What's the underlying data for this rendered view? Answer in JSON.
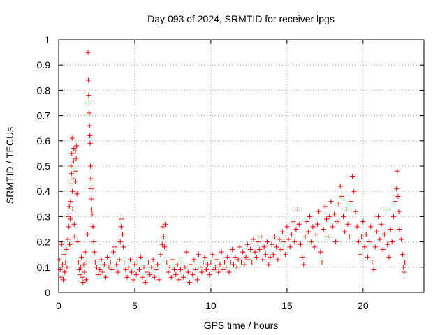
{
  "chart_data": {
    "type": "scatter",
    "title": "Day 093 of 2024, SRMTID for receiver lpgs",
    "xlabel": "GPS time / hours",
    "ylabel": "SRMTID / TECUs",
    "xlim": [
      0,
      24
    ],
    "ylim": [
      0,
      1
    ],
    "xticks": [
      0,
      5,
      10,
      15,
      20
    ],
    "yticks": [
      0,
      0.1,
      0.2,
      0.3,
      0.4,
      0.5,
      0.6,
      0.7,
      0.8,
      0.9,
      1
    ],
    "xtick_labels": [
      "0",
      "5",
      "10",
      "15",
      "20"
    ],
    "ytick_labels": [
      "0",
      "0.1",
      "0.2",
      "0.3",
      "0.4",
      "0.5",
      "0.6",
      "0.7",
      "0.8",
      "0.9",
      "1"
    ],
    "grid": true,
    "marker": "+",
    "series": [
      {
        "name": "lpgs",
        "color": "#ff0000",
        "points": [
          [
            0.05,
            0.13
          ],
          [
            0.1,
            0.09
          ],
          [
            0.15,
            0.06
          ],
          [
            0.2,
            0.19
          ],
          [
            0.25,
            0.11
          ],
          [
            0.3,
            0.05
          ],
          [
            0.35,
            0.15
          ],
          [
            0.4,
            0.08
          ],
          [
            0.45,
            0.12
          ],
          [
            0.5,
            0.17
          ],
          [
            0.55,
            0.1
          ],
          [
            0.6,
            0.21
          ],
          [
            0.62,
            0.3
          ],
          [
            0.66,
            0.26
          ],
          [
            0.7,
            0.34
          ],
          [
            0.72,
            0.19
          ],
          [
            0.75,
            0.29
          ],
          [
            0.78,
            0.36
          ],
          [
            0.8,
            0.43
          ],
          [
            0.82,
            0.5
          ],
          [
            0.84,
            0.47
          ],
          [
            0.86,
            0.55
          ],
          [
            0.88,
            0.61
          ],
          [
            0.9,
            0.4
          ],
          [
            0.92,
            0.33
          ],
          [
            0.95,
            0.45
          ],
          [
            0.98,
            0.52
          ],
          [
            1.0,
            0.57
          ],
          [
            1.02,
            0.27
          ],
          [
            1.05,
            0.22
          ],
          [
            1.08,
            0.48
          ],
          [
            1.1,
            0.56
          ],
          [
            1.12,
            0.44
          ],
          [
            1.15,
            0.53
          ],
          [
            1.18,
            0.58
          ],
          [
            1.2,
            0.39
          ],
          [
            1.25,
            0.2
          ],
          [
            1.3,
            0.12
          ],
          [
            1.35,
            0.09
          ],
          [
            1.4,
            0.07
          ],
          [
            1.45,
            0.1
          ],
          [
            1.5,
            0.14
          ],
          [
            1.55,
            0.06
          ],
          [
            1.6,
            0.04
          ],
          [
            1.65,
            0.11
          ],
          [
            1.7,
            0.08
          ],
          [
            1.75,
            0.16
          ],
          [
            1.8,
            0.05
          ],
          [
            1.85,
            0.12
          ],
          [
            1.9,
            0.23
          ],
          [
            1.93,
            0.95
          ],
          [
            1.95,
            0.84
          ],
          [
            1.97,
            0.78
          ],
          [
            1.99,
            0.75
          ],
          [
            2.01,
            0.71
          ],
          [
            2.03,
            0.66
          ],
          [
            2.05,
            0.62
          ],
          [
            2.07,
            0.59
          ],
          [
            2.09,
            0.5
          ],
          [
            2.11,
            0.45
          ],
          [
            2.13,
            0.41
          ],
          [
            2.15,
            0.37
          ],
          [
            2.17,
            0.33
          ],
          [
            2.2,
            0.31
          ],
          [
            2.25,
            0.26
          ],
          [
            2.3,
            0.2
          ],
          [
            2.35,
            0.16
          ],
          [
            2.4,
            0.12
          ],
          [
            2.5,
            0.1
          ],
          [
            2.6,
            0.07
          ],
          [
            2.7,
            0.09
          ],
          [
            2.8,
            0.13
          ],
          [
            2.9,
            0.08
          ],
          [
            3.0,
            0.11
          ],
          [
            3.1,
            0.06
          ],
          [
            3.2,
            0.14
          ],
          [
            3.3,
            0.1
          ],
          [
            3.4,
            0.12
          ],
          [
            3.5,
            0.09
          ],
          [
            3.6,
            0.16
          ],
          [
            3.7,
            0.18
          ],
          [
            3.8,
            0.11
          ],
          [
            3.9,
            0.08
          ],
          [
            4.0,
            0.13
          ],
          [
            4.05,
            0.2
          ],
          [
            4.1,
            0.26
          ],
          [
            4.15,
            0.29
          ],
          [
            4.2,
            0.23
          ],
          [
            4.25,
            0.18
          ],
          [
            4.3,
            0.12
          ],
          [
            4.4,
            0.09
          ],
          [
            4.5,
            0.06
          ],
          [
            4.6,
            0.1
          ],
          [
            4.7,
            0.13
          ],
          [
            4.8,
            0.08
          ],
          [
            4.9,
            0.05
          ],
          [
            5.0,
            0.11
          ],
          [
            5.1,
            0.07
          ],
          [
            5.2,
            0.12
          ],
          [
            5.3,
            0.09
          ],
          [
            5.4,
            0.14
          ],
          [
            5.5,
            0.06
          ],
          [
            5.6,
            0.1
          ],
          [
            5.7,
            0.04
          ],
          [
            5.8,
            0.08
          ],
          [
            5.9,
            0.12
          ],
          [
            6.0,
            0.07
          ],
          [
            6.1,
            0.1
          ],
          [
            6.2,
            0.13
          ],
          [
            6.3,
            0.06
          ],
          [
            6.4,
            0.09
          ],
          [
            6.5,
            0.11
          ],
          [
            6.6,
            0.05
          ],
          [
            6.7,
            0.15
          ],
          [
            6.8,
            0.19
          ],
          [
            6.85,
            0.26
          ],
          [
            6.9,
            0.22
          ],
          [
            6.95,
            0.18
          ],
          [
            7.0,
            0.27
          ],
          [
            7.1,
            0.12
          ],
          [
            7.2,
            0.08
          ],
          [
            7.3,
            0.1
          ],
          [
            7.4,
            0.06
          ],
          [
            7.5,
            0.13
          ],
          [
            7.6,
            0.09
          ],
          [
            7.7,
            0.07
          ],
          [
            7.8,
            0.11
          ],
          [
            7.9,
            0.05
          ],
          [
            8.0,
            0.09
          ],
          [
            8.1,
            0.12
          ],
          [
            8.2,
            0.06
          ],
          [
            8.3,
            0.1
          ],
          [
            8.4,
            0.16
          ],
          [
            8.5,
            0.08
          ],
          [
            8.6,
            0.04
          ],
          [
            8.7,
            0.11
          ],
          [
            8.8,
            0.07
          ],
          [
            8.9,
            0.13
          ],
          [
            9.0,
            0.09
          ],
          [
            9.1,
            0.05
          ],
          [
            9.2,
            0.15
          ],
          [
            9.3,
            0.1
          ],
          [
            9.4,
            0.08
          ],
          [
            9.5,
            0.12
          ],
          [
            9.6,
            0.14
          ],
          [
            9.7,
            0.09
          ],
          [
            9.8,
            0.11
          ],
          [
            9.9,
            0.07
          ],
          [
            10.0,
            0.12
          ],
          [
            10.1,
            0.15
          ],
          [
            10.2,
            0.09
          ],
          [
            10.3,
            0.1
          ],
          [
            10.4,
            0.13
          ],
          [
            10.5,
            0.08
          ],
          [
            10.6,
            0.11
          ],
          [
            10.7,
            0.16
          ],
          [
            10.8,
            0.09
          ],
          [
            10.9,
            0.12
          ],
          [
            11.0,
            0.1
          ],
          [
            11.1,
            0.14
          ],
          [
            11.2,
            0.08
          ],
          [
            11.3,
            0.12
          ],
          [
            11.4,
            0.17
          ],
          [
            11.5,
            0.11
          ],
          [
            11.6,
            0.14
          ],
          [
            11.7,
            0.1
          ],
          [
            11.8,
            0.13
          ],
          [
            11.9,
            0.18
          ],
          [
            12.0,
            0.12
          ],
          [
            12.1,
            0.16
          ],
          [
            12.2,
            0.11
          ],
          [
            12.3,
            0.14
          ],
          [
            12.4,
            0.19
          ],
          [
            12.5,
            0.13
          ],
          [
            12.6,
            0.17
          ],
          [
            12.7,
            0.12
          ],
          [
            12.8,
            0.21
          ],
          [
            12.9,
            0.16
          ],
          [
            13.0,
            0.14
          ],
          [
            13.1,
            0.2
          ],
          [
            13.2,
            0.17
          ],
          [
            13.3,
            0.22
          ],
          [
            13.4,
            0.13
          ],
          [
            13.5,
            0.18
          ],
          [
            13.6,
            0.15
          ],
          [
            13.7,
            0.2
          ],
          [
            13.8,
            0.11
          ],
          [
            13.9,
            0.14
          ],
          [
            14.0,
            0.19
          ],
          [
            14.1,
            0.15
          ],
          [
            14.2,
            0.22
          ],
          [
            14.3,
            0.18
          ],
          [
            14.4,
            0.13
          ],
          [
            14.5,
            0.21
          ],
          [
            14.6,
            0.17
          ],
          [
            14.7,
            0.24
          ],
          [
            14.8,
            0.2
          ],
          [
            14.9,
            0.15
          ],
          [
            15.0,
            0.26
          ],
          [
            15.1,
            0.21
          ],
          [
            15.2,
            0.18
          ],
          [
            15.3,
            0.23
          ],
          [
            15.4,
            0.28
          ],
          [
            15.5,
            0.2
          ],
          [
            15.6,
            0.25
          ],
          [
            15.7,
            0.33
          ],
          [
            15.8,
            0.27
          ],
          [
            15.9,
            0.19
          ],
          [
            16.0,
            0.14
          ],
          [
            16.1,
            0.11
          ],
          [
            16.2,
            0.22
          ],
          [
            16.3,
            0.28
          ],
          [
            16.4,
            0.24
          ],
          [
            16.5,
            0.3
          ],
          [
            16.6,
            0.2
          ],
          [
            16.7,
            0.26
          ],
          [
            16.8,
            0.18
          ],
          [
            16.9,
            0.23
          ],
          [
            17.0,
            0.27
          ],
          [
            17.1,
            0.32
          ],
          [
            17.2,
            0.16
          ],
          [
            17.3,
            0.12
          ],
          [
            17.4,
            0.25
          ],
          [
            17.5,
            0.34
          ],
          [
            17.6,
            0.29
          ],
          [
            17.7,
            0.22
          ],
          [
            17.8,
            0.3
          ],
          [
            17.9,
            0.36
          ],
          [
            18.0,
            0.26
          ],
          [
            18.1,
            0.31
          ],
          [
            18.2,
            0.2
          ],
          [
            18.3,
            0.28
          ],
          [
            18.4,
            0.35
          ],
          [
            18.5,
            0.42
          ],
          [
            18.6,
            0.38
          ],
          [
            18.7,
            0.3
          ],
          [
            18.8,
            0.24
          ],
          [
            18.9,
            0.33
          ],
          [
            19.0,
            0.27
          ],
          [
            19.1,
            0.22
          ],
          [
            19.2,
            0.36
          ],
          [
            19.3,
            0.46
          ],
          [
            19.4,
            0.4
          ],
          [
            19.5,
            0.32
          ],
          [
            19.6,
            0.26
          ],
          [
            19.7,
            0.2
          ],
          [
            19.8,
            0.15
          ],
          [
            19.9,
            0.22
          ],
          [
            20.0,
            0.28
          ],
          [
            20.1,
            0.18
          ],
          [
            20.2,
            0.23
          ],
          [
            20.3,
            0.14
          ],
          [
            20.4,
            0.2
          ],
          [
            20.5,
            0.26
          ],
          [
            20.6,
            0.12
          ],
          [
            20.7,
            0.09
          ],
          [
            20.8,
            0.18
          ],
          [
            20.9,
            0.24
          ],
          [
            21.0,
            0.3
          ],
          [
            21.1,
            0.21
          ],
          [
            21.2,
            0.27
          ],
          [
            21.3,
            0.17
          ],
          [
            21.4,
            0.23
          ],
          [
            21.5,
            0.33
          ],
          [
            21.6,
            0.19
          ],
          [
            21.7,
            0.14
          ],
          [
            21.8,
            0.25
          ],
          [
            21.9,
            0.2
          ],
          [
            22.0,
            0.3
          ],
          [
            22.1,
            0.36
          ],
          [
            22.2,
            0.41
          ],
          [
            22.25,
            0.48
          ],
          [
            22.3,
            0.38
          ],
          [
            22.35,
            0.32
          ],
          [
            22.4,
            0.25
          ],
          [
            22.5,
            0.21
          ],
          [
            22.6,
            0.15
          ],
          [
            22.65,
            0.1
          ],
          [
            22.7,
            0.08
          ],
          [
            22.75,
            0.12
          ]
        ]
      }
    ]
  }
}
